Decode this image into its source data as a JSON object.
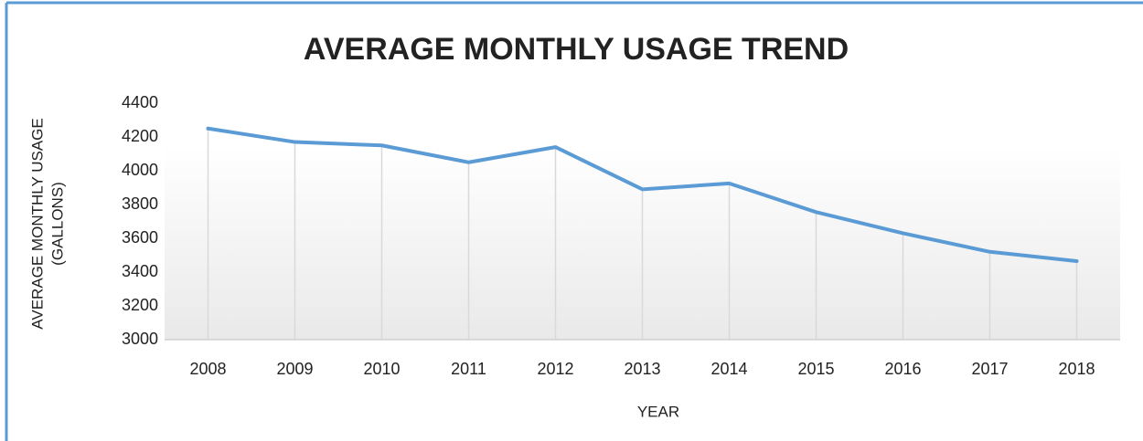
{
  "chart_data": {
    "type": "line",
    "title": "AVERAGE MONTHLY USAGE TREND",
    "xlabel": "YEAR",
    "ylabel": [
      "AVERAGE MONTHLY USAGE",
      "(GALLONS)"
    ],
    "categories": [
      "2008",
      "2009",
      "2010",
      "2011",
      "2012",
      "2013",
      "2014",
      "2015",
      "2016",
      "2017",
      "2018"
    ],
    "series": [
      {
        "name": "Average Monthly Usage",
        "color": "#5b9bd5",
        "values": [
          4250,
          4170,
          4150,
          4050,
          4140,
          3890,
          3925,
          3755,
          3630,
          3520,
          3465
        ]
      }
    ],
    "ylim": [
      3000,
      4400
    ],
    "yticks": [
      3000,
      3200,
      3400,
      3600,
      3800,
      4000,
      4200,
      4400
    ],
    "drop_lines": true,
    "grid": false
  }
}
